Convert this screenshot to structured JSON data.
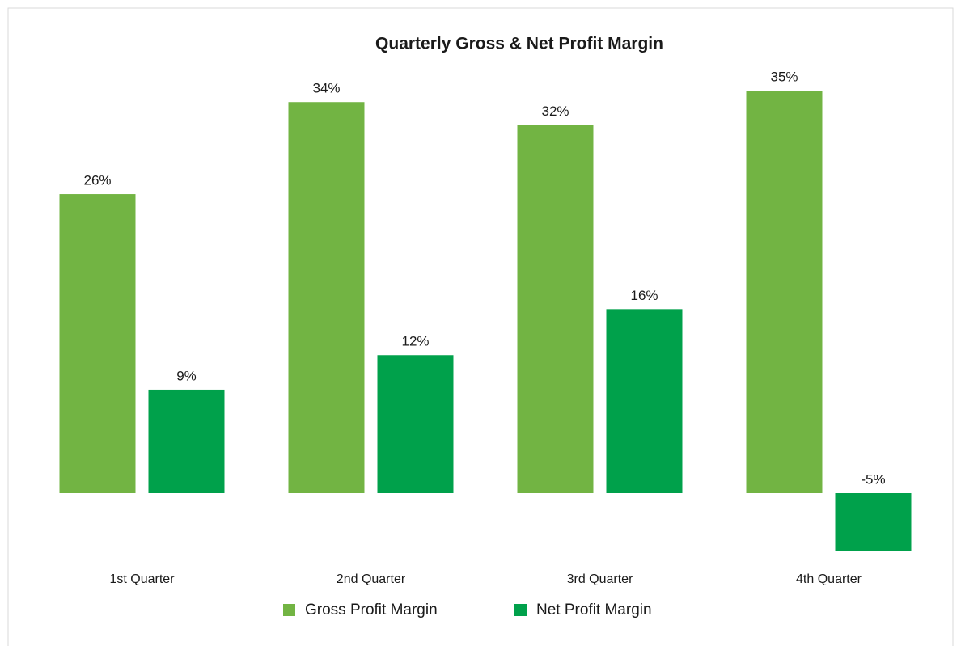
{
  "chart_data": {
    "type": "bar",
    "title": "Quarterly Gross & Net Profit Margin",
    "categories": [
      "1st Quarter",
      "2nd Quarter",
      "3rd Quarter",
      "4th Quarter"
    ],
    "series": [
      {
        "name": "Gross Profit Margin",
        "color": "#72b443",
        "values": [
          26,
          34,
          32,
          35
        ],
        "value_labels": [
          "26%",
          "34%",
          "32%",
          "35%"
        ]
      },
      {
        "name": "Net Profit Margin",
        "color": "#00a14b",
        "values": [
          9,
          12,
          16,
          -5
        ],
        "value_labels": [
          "9%",
          "12%",
          "16%",
          "-5%"
        ]
      }
    ]
  }
}
